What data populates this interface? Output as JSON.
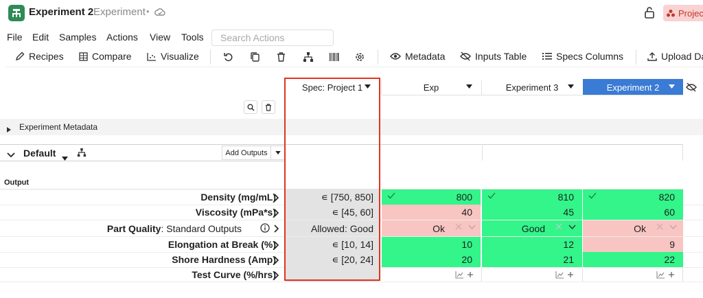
{
  "titlebar": {
    "title": "Experiment 2",
    "subtitle": "Experiment",
    "separator": "•",
    "badge": "Projec"
  },
  "menu": {
    "items": [
      "File",
      "Edit",
      "Samples",
      "Actions",
      "View",
      "Tools"
    ],
    "search_placeholder": "Search Actions"
  },
  "toolbar": {
    "recipes": "Recipes",
    "compare": "Compare",
    "visualize": "Visualize",
    "metadata": "Metadata",
    "inputs_table": "Inputs Table",
    "specs_columns": "Specs Columns",
    "upload": "Upload Da"
  },
  "columns": {
    "spec": "Spec: Project 1",
    "exp": "Exp",
    "exp3": "Experiment 3",
    "exp2": "Experiment 2"
  },
  "sections": {
    "metadata": "Experiment Metadata",
    "default": "Default",
    "add_outputs": "Add Outputs",
    "output": "Output"
  },
  "rows": [
    {
      "label": "Density (mg/mL)",
      "spec": "∊ [750, 850]",
      "values": [
        "800",
        "810",
        "820"
      ],
      "status": [
        "pass",
        "pass",
        "pass"
      ]
    },
    {
      "label": "Viscosity (mPa*s)",
      "spec": "∊ [45, 60]",
      "values": [
        "40",
        "45",
        "60"
      ],
      "status": [
        "fail",
        "pass",
        "pass"
      ]
    },
    {
      "label_bold": "Part Quality",
      "label_rest": ": Standard Outputs",
      "spec": "Allowed: Good",
      "values": [
        "Ok",
        "Good",
        "Ok"
      ],
      "status": [
        "fail",
        "pass",
        "fail"
      ]
    },
    {
      "label": "Elongation at Break (%)",
      "spec": "∊ [10, 14]",
      "values": [
        "10",
        "12",
        "9"
      ],
      "status": [
        "pass",
        "pass",
        "fail"
      ]
    },
    {
      "label": "Shore Hardness (Amp)",
      "spec": "∊ [20, 24]",
      "values": [
        "20",
        "21",
        "22"
      ],
      "status": [
        "pass",
        "pass",
        "pass"
      ]
    },
    {
      "label": "Test Curve (%/hrs)",
      "spec": "",
      "values": [
        "",
        "",
        ""
      ],
      "status": [
        "none",
        "none",
        "none"
      ]
    }
  ],
  "colors": {
    "pass": "#33f58a",
    "fail": "#f8c5c3",
    "spec_bg": "#e3e3e3",
    "active_column": "#3a7bd5",
    "highlight": "#e0331f",
    "app_icon": "#2e8b57"
  }
}
